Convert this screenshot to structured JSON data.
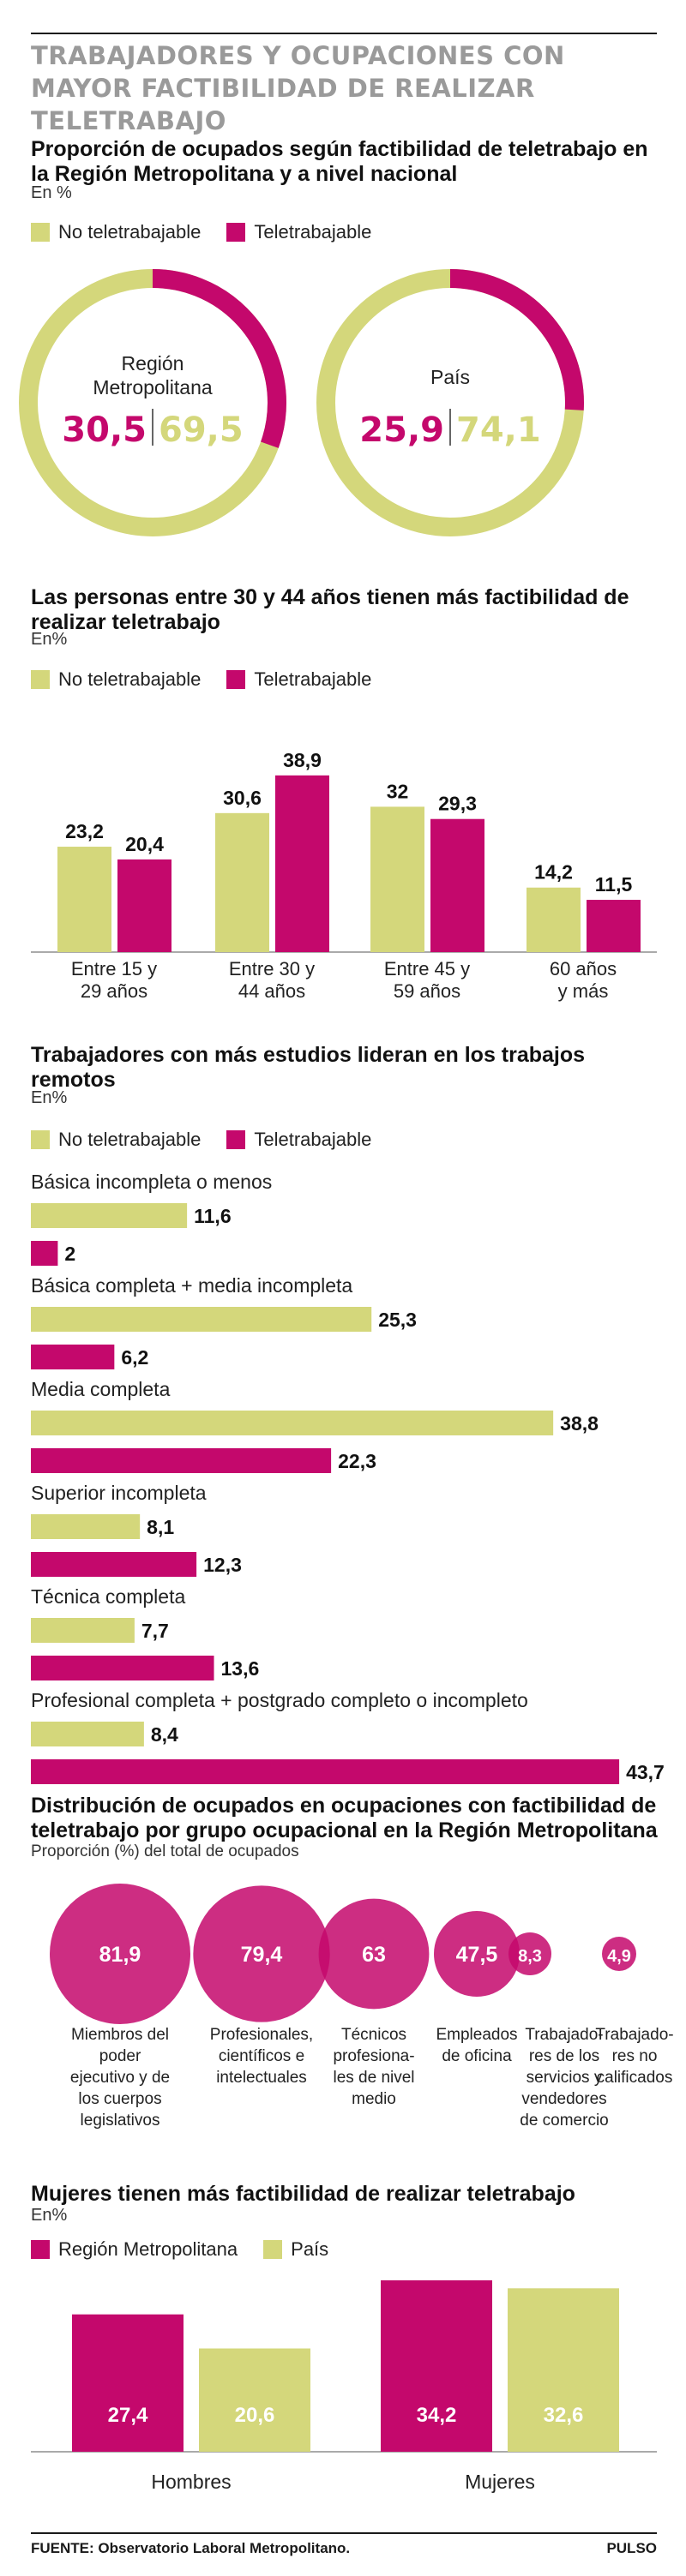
{
  "header": {
    "title": "Trabajadores y ocupaciones con mayor factibilidad de realizar teletrabajo"
  },
  "colors": {
    "no_tele": "#d4d77b",
    "tele": "#c4086c",
    "text": "#1a1a1a",
    "title_grey": "#9a9a9a"
  },
  "legend": {
    "no_tele": "No teletrabajable",
    "tele": "Teletrabajable",
    "region": "Región Metropolitana",
    "pais": "País"
  },
  "footer": {
    "source": "FUENTE: Observatorio Laboral Metropolitano.",
    "brand": "PULSO"
  },
  "chart_data": [
    {
      "type": "pie",
      "title": "Proporción de ocupados según factibilidad de teletrabajo en la Región Metropolitana y a nivel nacional",
      "subtitle": "En %",
      "series_names": [
        "Teletrabajable",
        "No teletrabajable"
      ],
      "pies": [
        {
          "label_lines": [
            "Región",
            "Metropolitana"
          ],
          "tele": "30,5",
          "no_tele": "69,5",
          "tele_value": 30.5,
          "no_tele_value": 69.5
        },
        {
          "label_lines": [
            "País"
          ],
          "tele": "25,9",
          "no_tele": "74,1",
          "tele_value": 25.9,
          "no_tele_value": 74.1
        }
      ]
    },
    {
      "type": "bar",
      "title": "Las personas entre 30 y 44 años tienen más factibilidad de realizar teletrabajo",
      "subtitle": "En%",
      "categories": [
        [
          "Entre 15 y",
          "29 años"
        ],
        [
          "Entre 30 y",
          "44 años"
        ],
        [
          "Entre 45 y",
          "59 años"
        ],
        [
          "60 años",
          "y más"
        ]
      ],
      "series": [
        {
          "name": "No teletrabajable",
          "values": [
            23.2,
            30.6,
            32,
            14.2
          ],
          "labels": [
            "23,2",
            "30,6",
            "32",
            "14,2"
          ]
        },
        {
          "name": "Teletrabajable",
          "values": [
            20.4,
            38.9,
            29.3,
            11.5
          ],
          "labels": [
            "20,4",
            "38,9",
            "29,3",
            "11,5"
          ]
        }
      ]
    },
    {
      "type": "bar",
      "orientation": "horizontal",
      "title": "Trabajadores con más estudios lideran en los trabajos remotos",
      "subtitle": "En%",
      "categories": [
        "Básica incompleta o menos",
        "Básica completa + media incompleta",
        "Media completa",
        "Superior incompleta",
        "Técnica completa",
        "Profesional completa + postgrado completo o incompleto"
      ],
      "series": [
        {
          "name": "No teletrabajable",
          "values": [
            11.6,
            25.3,
            38.8,
            8.1,
            7.7,
            8.4
          ],
          "labels": [
            "11,6",
            "25,3",
            "38,8",
            "8,1",
            "7,7",
            "8,4"
          ]
        },
        {
          "name": "Teletrabajable",
          "values": [
            2,
            6.2,
            22.3,
            12.3,
            13.6,
            43.7
          ],
          "labels": [
            "2",
            "6,2",
            "22,3",
            "12,3",
            "13,6",
            "43,7"
          ]
        }
      ]
    },
    {
      "type": "scatter",
      "title": "Distribución de ocupados en ocupaciones con factibilidad de teletrabajo por grupo ocupacional en la Región Metropolitana",
      "subtitle": "Proporción (%) del total de ocupados",
      "groups": [
        {
          "value": 81.9,
          "value_label": "81,9",
          "label_lines": [
            "Miembros del",
            "poder",
            "ejecutivo y de",
            "los cuerpos",
            "legislativos"
          ]
        },
        {
          "value": 79.4,
          "value_label": "79,4",
          "label_lines": [
            "Profesionales,",
            "científicos e",
            "intelectuales"
          ]
        },
        {
          "value": 63,
          "value_label": "63",
          "label_lines": [
            "Técnicos",
            "profesiona-",
            "les de nivel",
            "medio"
          ]
        },
        {
          "value": 47.5,
          "value_label": "47,5",
          "label_lines": [
            "Empleados",
            "de oficina"
          ]
        },
        {
          "value": 8.3,
          "value_label": "8,3",
          "label_lines": [
            "Trabajado-",
            "res de los",
            "servicios y",
            "vendedores",
            "de comercio"
          ]
        },
        {
          "value": 4.9,
          "value_label": "4,9",
          "label_lines": [
            "Trabajado-",
            "res no",
            "calificados"
          ]
        }
      ]
    },
    {
      "type": "bar",
      "title": "Mujeres tienen más factibilidad de realizar teletrabajo",
      "subtitle": "En%",
      "categories": [
        "Hombres",
        "Mujeres"
      ],
      "series": [
        {
          "name": "Región Metropolitana",
          "values": [
            27.4,
            34.2
          ],
          "labels": [
            "27,4",
            "34,2"
          ]
        },
        {
          "name": "País",
          "values": [
            20.6,
            32.6
          ],
          "labels": [
            "20,6",
            "32,6"
          ]
        }
      ]
    }
  ]
}
